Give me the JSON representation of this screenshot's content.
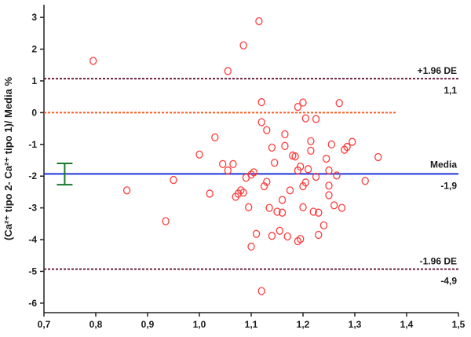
{
  "chart_data": {
    "type": "scatter",
    "ylabel": "(Ca²⁺ tipo 2- Ca²⁺ tipo 1)/ Media %",
    "xlabel": "",
    "xlim": [
      0.7,
      1.5
    ],
    "ylim": [
      -6.3,
      3.4
    ],
    "x_ticks": [
      0.7,
      0.8,
      0.9,
      1.0,
      1.1,
      1.2,
      1.3,
      1.4,
      1.5
    ],
    "x_tick_labels": [
      "0,7",
      "0,8",
      "0,9",
      "1,0",
      "1,1",
      "1,2",
      "1,3",
      "1,4",
      "1,5"
    ],
    "y_ticks": [
      3,
      2,
      1,
      0,
      -1,
      -2,
      -3,
      -4,
      -5,
      -6
    ],
    "y_tick_labels": [
      "3",
      "2",
      "1",
      "0",
      "-1",
      "-2",
      "-3",
      "-4",
      "-5",
      "-6"
    ],
    "grid": false,
    "colors": {
      "points": "#ff3b3b",
      "mean_line": "#1f35d6",
      "zero_line": "#ff5a1f",
      "limit_lines": "#6b1f3f",
      "error_bar": "#1a7a2a",
      "axes": "#222222"
    },
    "reference_lines": {
      "upper": {
        "value": 1.07,
        "label_top": "+1.96 DE",
        "label_bottom": "1,1"
      },
      "zero": {
        "value": 0,
        "x_end": 1.38
      },
      "mean": {
        "value": -1.93,
        "label_top": "Media",
        "label_bottom": "-1,9"
      },
      "lower": {
        "value": -4.93,
        "label_top": "-1.96 DE",
        "label_bottom": "-4,9"
      }
    },
    "error_bar": {
      "x": 0.74,
      "center": -1.93,
      "low": -2.27,
      "high": -1.6
    },
    "points": [
      [
        0.795,
        1.63
      ],
      [
        1.055,
        1.31
      ],
      [
        1.085,
        2.12
      ],
      [
        1.115,
        2.88
      ],
      [
        0.86,
        -2.45
      ],
      [
        0.935,
        -3.42
      ],
      [
        0.95,
        -2.12
      ],
      [
        1.0,
        -1.32
      ],
      [
        1.02,
        -2.55
      ],
      [
        1.03,
        -0.78
      ],
      [
        1.045,
        -1.62
      ],
      [
        1.055,
        -1.82
      ],
      [
        1.065,
        -1.62
      ],
      [
        1.07,
        -2.65
      ],
      [
        1.075,
        -2.55
      ],
      [
        1.08,
        -2.45
      ],
      [
        1.085,
        -2.52
      ],
      [
        1.09,
        -2.05
      ],
      [
        1.095,
        -2.98
      ],
      [
        1.1,
        -4.22
      ],
      [
        1.1,
        -1.95
      ],
      [
        1.105,
        -1.88
      ],
      [
        1.11,
        -3.82
      ],
      [
        1.12,
        -0.3
      ],
      [
        1.12,
        0.33
      ],
      [
        1.12,
        -5.62
      ],
      [
        1.125,
        -2.32
      ],
      [
        1.13,
        -2.18
      ],
      [
        1.13,
        -0.55
      ],
      [
        1.135,
        -3.0
      ],
      [
        1.14,
        -1.1
      ],
      [
        1.14,
        -3.88
      ],
      [
        1.145,
        -1.58
      ],
      [
        1.15,
        -3.12
      ],
      [
        1.155,
        -3.72
      ],
      [
        1.16,
        -3.15
      ],
      [
        1.16,
        -2.75
      ],
      [
        1.165,
        -1.05
      ],
      [
        1.165,
        -0.68
      ],
      [
        1.17,
        -3.9
      ],
      [
        1.175,
        -2.45
      ],
      [
        1.18,
        -1.35
      ],
      [
        1.185,
        -1.38
      ],
      [
        1.19,
        -1.82
      ],
      [
        1.19,
        0.18
      ],
      [
        1.195,
        -1.7
      ],
      [
        1.2,
        0.32
      ],
      [
        1.2,
        -2.32
      ],
      [
        1.2,
        -2.98
      ],
      [
        1.205,
        -2.2
      ],
      [
        1.205,
        -0.18
      ],
      [
        1.21,
        -1.78
      ],
      [
        1.215,
        -0.9
      ],
      [
        1.215,
        -1.2
      ],
      [
        1.22,
        -3.12
      ],
      [
        1.225,
        -2.02
      ],
      [
        1.225,
        -0.2
      ],
      [
        1.23,
        -3.15
      ],
      [
        1.23,
        -3.85
      ],
      [
        1.24,
        -3.55
      ],
      [
        1.245,
        -1.45
      ],
      [
        1.25,
        -2.3
      ],
      [
        1.25,
        -1.82
      ],
      [
        1.255,
        -1.0
      ],
      [
        1.26,
        -2.92
      ],
      [
        1.265,
        -1.98
      ],
      [
        1.27,
        0.3
      ],
      [
        1.275,
        -3.0
      ],
      [
        1.28,
        -1.17
      ],
      [
        1.285,
        -1.08
      ],
      [
        1.295,
        -0.92
      ],
      [
        1.32,
        -2.15
      ],
      [
        1.345,
        -1.4
      ],
      [
        1.19,
        -4.05
      ],
      [
        1.195,
        -3.98
      ],
      [
        1.25,
        -2.6
      ]
    ]
  }
}
